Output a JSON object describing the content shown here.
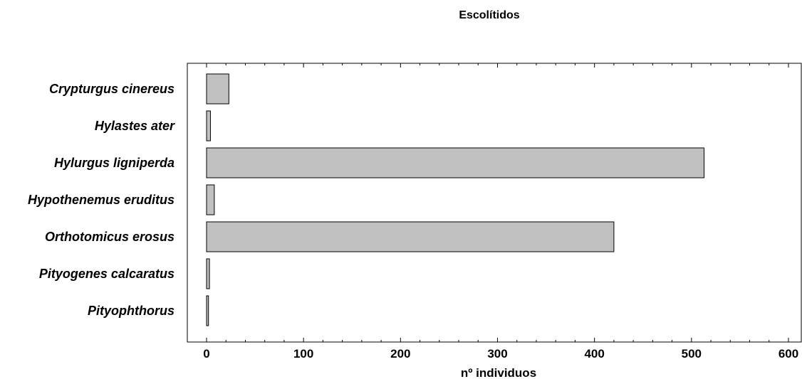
{
  "chart_data": {
    "type": "bar",
    "orientation": "horizontal",
    "title": "Escolítidos",
    "xlabel": "nº individuos",
    "ylabel": "",
    "categories": [
      "Crypturgus cinereus",
      "Hylastes ater",
      "Hylurgus ligniperda",
      "Hypothenemus eruditus",
      "Orthotomicus erosus",
      "Pityogenes calcaratus",
      "Pityophthorus"
    ],
    "values": [
      23,
      4,
      513,
      8,
      420,
      3,
      2
    ],
    "xlim": [
      -20,
      610
    ],
    "xticks": [
      0,
      100,
      200,
      300,
      400,
      500,
      600
    ],
    "bar_color": "#c0c0c0",
    "bar_edge_color": "#000000",
    "grid": false,
    "legend": "none"
  }
}
